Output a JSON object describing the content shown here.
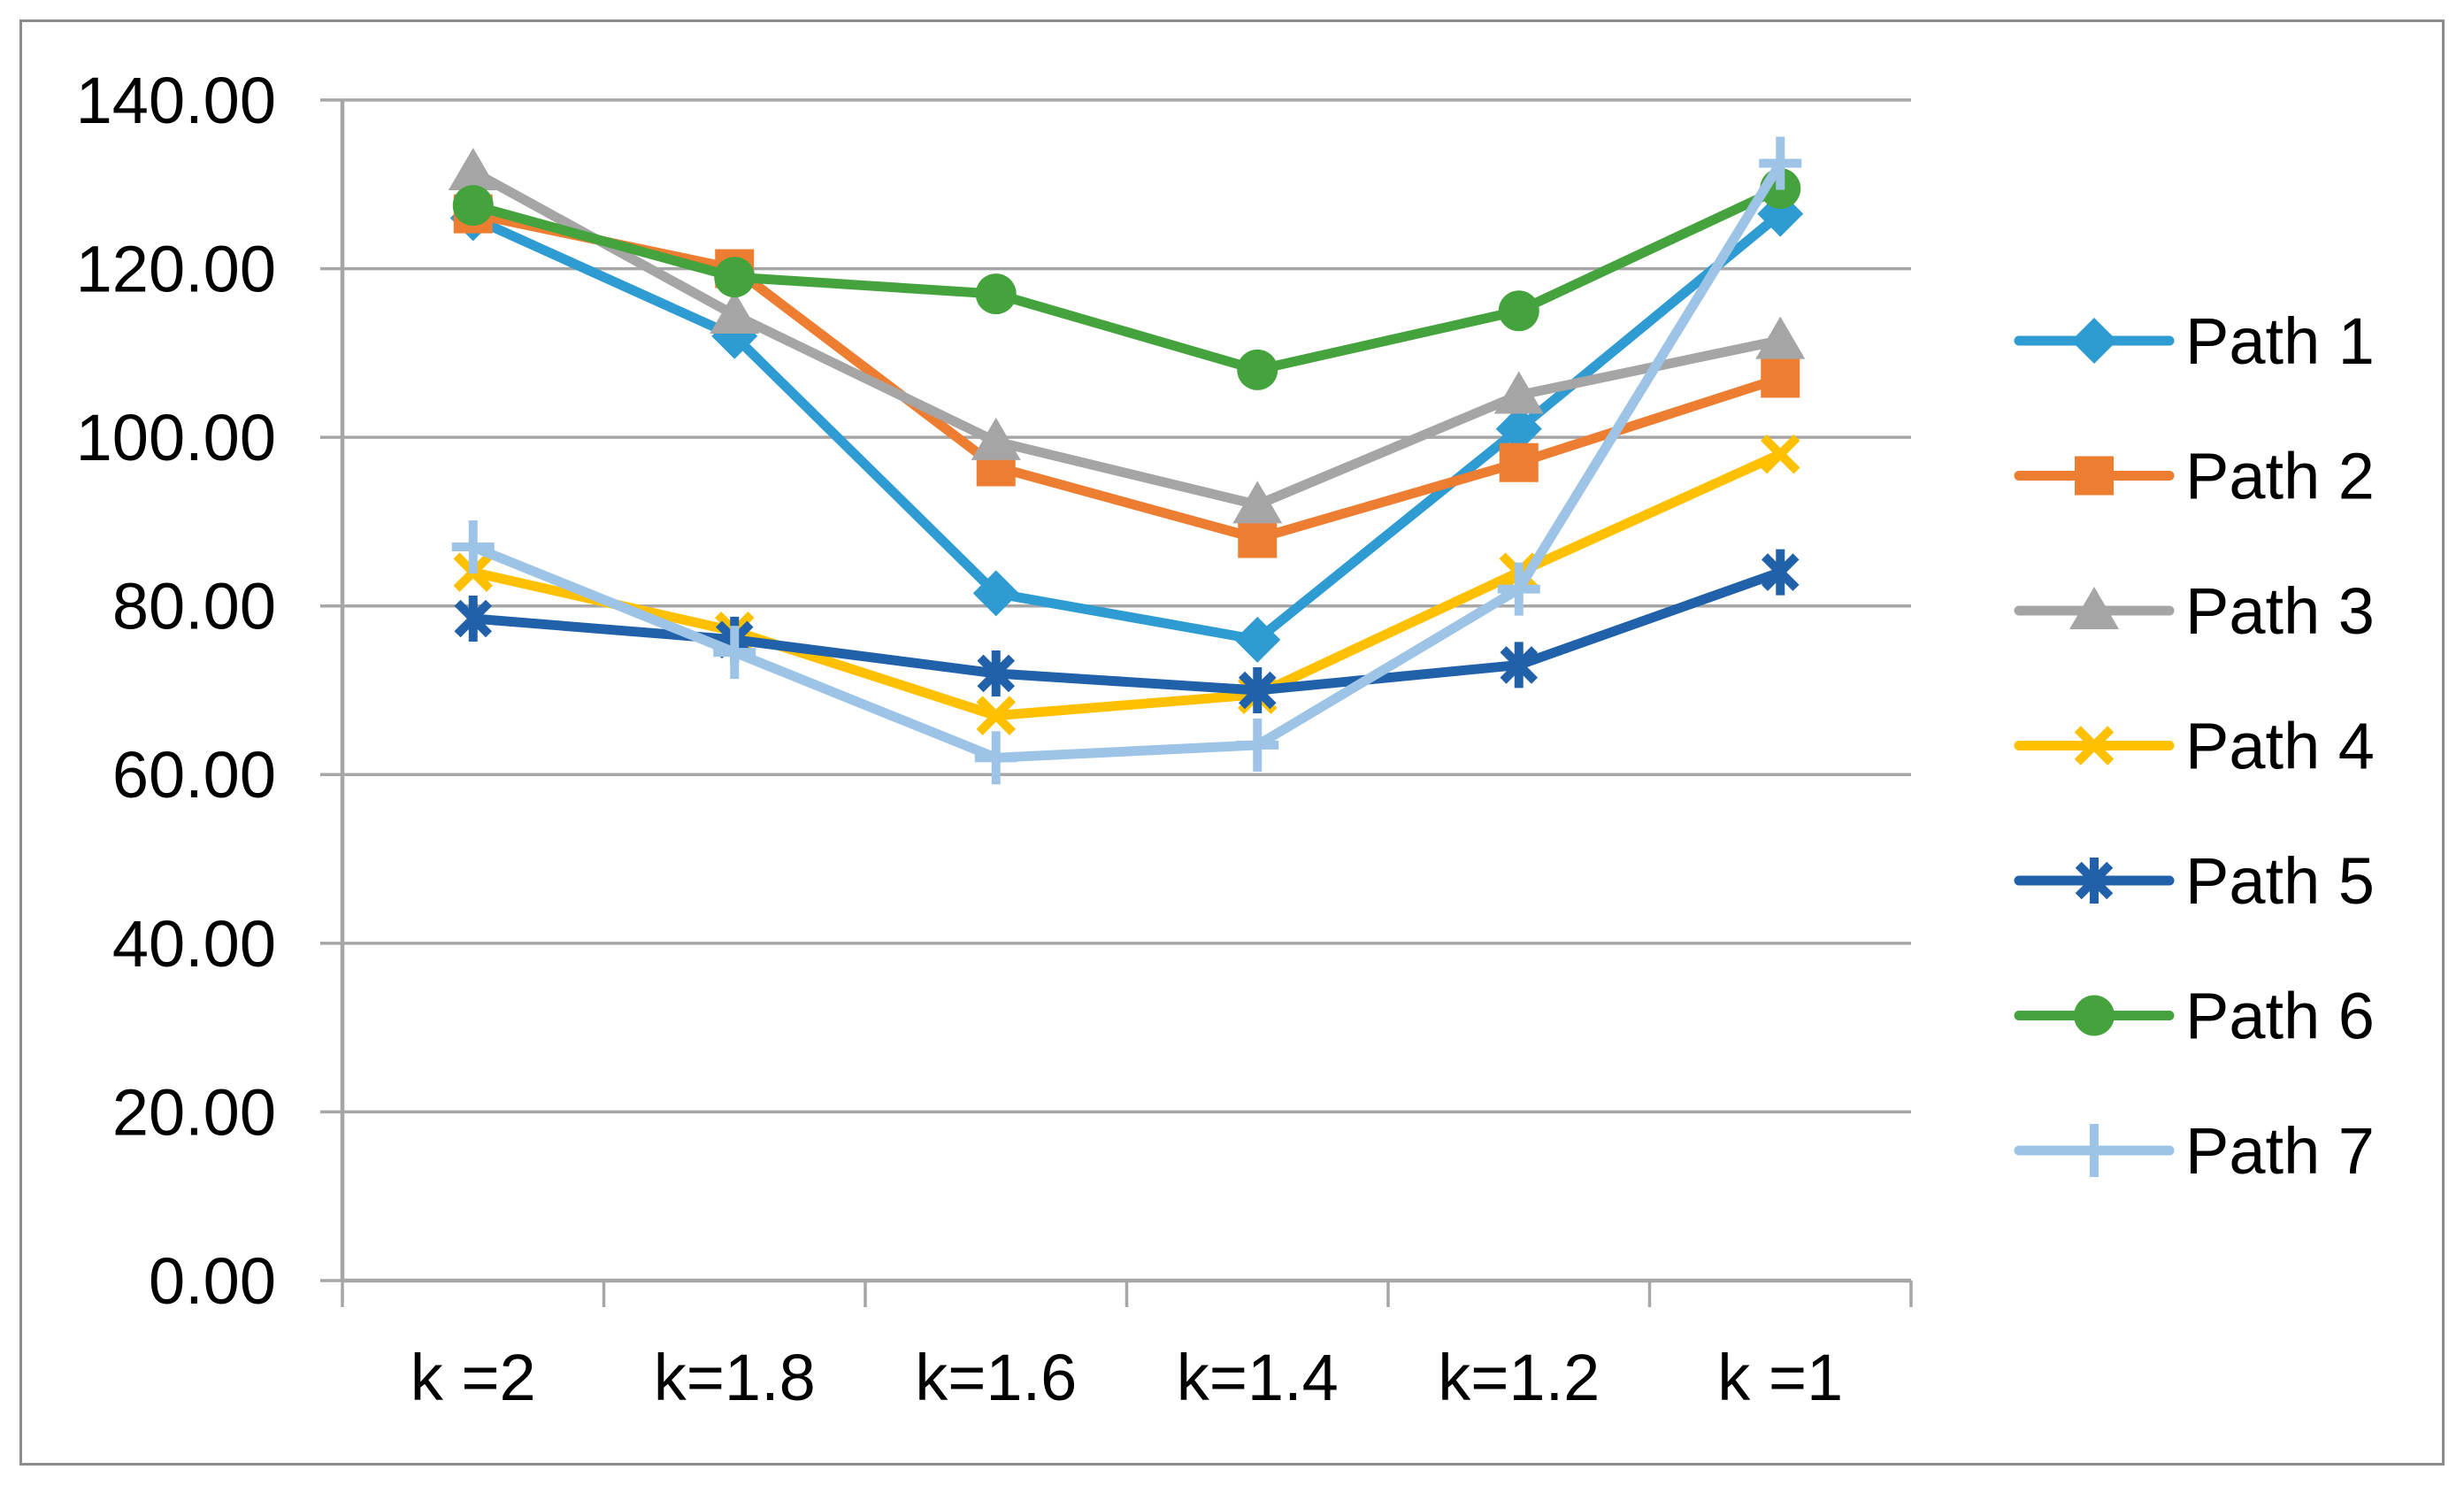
{
  "chart_data": {
    "type": "line",
    "title": "",
    "xlabel": "",
    "ylabel": "",
    "categories": [
      "k =2",
      "k=1.8",
      "k=1.6",
      "k=1.4",
      "k=1.2",
      "k =1"
    ],
    "y_axis": {
      "min": 0,
      "max": 140,
      "step": 20,
      "tick_labels": [
        "0.00",
        "20.00",
        "40.00",
        "60.00",
        "80.00",
        "100.00",
        "120.00",
        "140.00"
      ]
    },
    "grid": true,
    "legend_position": "right",
    "series": [
      {
        "name": "Path 1",
        "marker": "diamond",
        "color": "#2E9BD2",
        "values": [
          126,
          112,
          81.5,
          76,
          101,
          126.5
        ]
      },
      {
        "name": "Path 2",
        "marker": "square",
        "color": "#ED7D31",
        "values": [
          126.5,
          120,
          96.5,
          88,
          97,
          107
        ]
      },
      {
        "name": "Path 3",
        "marker": "triangle",
        "color": "#A5A5A5",
        "values": [
          131.5,
          114.5,
          99.5,
          92,
          105,
          111.5
        ]
      },
      {
        "name": "Path 4",
        "marker": "x",
        "color": "#FFC000",
        "values": [
          84,
          77,
          67,
          69.5,
          84,
          98
        ]
      },
      {
        "name": "Path 5",
        "marker": "asterisk",
        "color": "#2061A9",
        "values": [
          78.5,
          76,
          72,
          70,
          73,
          84
        ]
      },
      {
        "name": "Path 6",
        "marker": "circle",
        "color": "#45A33E",
        "values": [
          127.5,
          119,
          117,
          108,
          115,
          129.5
        ]
      },
      {
        "name": "Path 7",
        "marker": "plus",
        "color": "#9DC3E6",
        "values": [
          87,
          74.5,
          62,
          63.5,
          82,
          132.5
        ]
      }
    ],
    "colors": {
      "grid": "#A6A6A6",
      "axis": "#A6A6A6",
      "frame_border": "#8C8C8C",
      "text": "#000000",
      "background": "#FFFFFF"
    }
  }
}
